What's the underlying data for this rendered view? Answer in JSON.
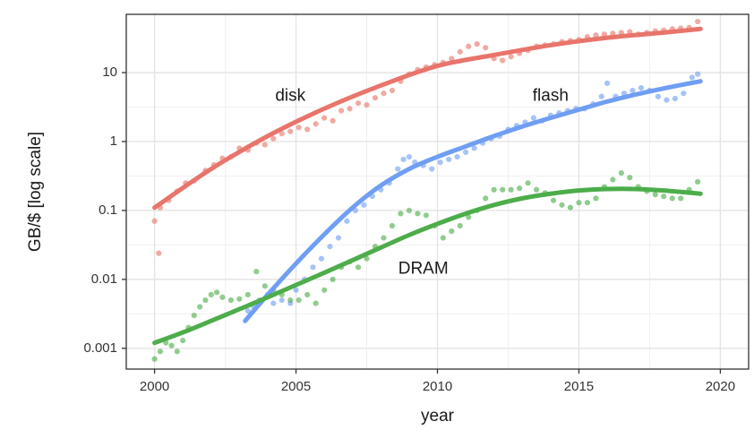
{
  "chart_data": {
    "type": "scatter",
    "title": "",
    "xlabel": "year",
    "ylabel": "GB/$ [log scale]",
    "xlim": [
      1999,
      2021
    ],
    "ylim": [
      0.0005,
      70
    ],
    "y_scale": "log",
    "grid": true,
    "legend": "none",
    "x_ticks": [
      2000,
      2005,
      2010,
      2015,
      2020
    ],
    "x_tick_labels": [
      "2000",
      "2005",
      "2010",
      "2015",
      "2020"
    ],
    "y_ticks": [
      0.001,
      0.01,
      0.1,
      1,
      10
    ],
    "y_tick_labels": [
      "0.001",
      "0.01",
      "0.1",
      "1",
      "10"
    ],
    "series": [
      {
        "label": "disk",
        "color": "#e8746b",
        "points": [
          [
            2000.0,
            0.07
          ],
          [
            2000.15,
            0.024
          ],
          [
            2000.2,
            0.11
          ],
          [
            2000.5,
            0.14
          ],
          [
            2000.8,
            0.19
          ],
          [
            2001.1,
            0.25
          ],
          [
            2001.4,
            0.27
          ],
          [
            2001.8,
            0.38
          ],
          [
            2002.1,
            0.46
          ],
          [
            2002.4,
            0.57
          ],
          [
            2002.7,
            0.6
          ],
          [
            2003.0,
            0.8
          ],
          [
            2003.3,
            0.75
          ],
          [
            2003.6,
            0.95
          ],
          [
            2003.9,
            0.9
          ],
          [
            2004.2,
            1.1
          ],
          [
            2004.5,
            1.3
          ],
          [
            2004.8,
            1.4
          ],
          [
            2005.1,
            1.6
          ],
          [
            2005.4,
            1.5
          ],
          [
            2005.7,
            1.8
          ],
          [
            2006.0,
            2.2
          ],
          [
            2006.3,
            2.0
          ],
          [
            2006.6,
            2.8
          ],
          [
            2006.9,
            3.0
          ],
          [
            2007.2,
            3.6
          ],
          [
            2007.5,
            3.4
          ],
          [
            2007.8,
            4.3
          ],
          [
            2008.1,
            5.0
          ],
          [
            2008.4,
            5.5
          ],
          [
            2008.7,
            7.5
          ],
          [
            2009.0,
            9.5
          ],
          [
            2009.3,
            11
          ],
          [
            2009.6,
            12
          ],
          [
            2009.9,
            13
          ],
          [
            2010.2,
            14
          ],
          [
            2010.5,
            16
          ],
          [
            2010.8,
            20
          ],
          [
            2011.1,
            24
          ],
          [
            2011.4,
            26
          ],
          [
            2011.7,
            23
          ],
          [
            2012.0,
            16
          ],
          [
            2012.3,
            15
          ],
          [
            2012.6,
            17
          ],
          [
            2012.9,
            19
          ],
          [
            2013.2,
            21
          ],
          [
            2013.5,
            24
          ],
          [
            2013.8,
            25
          ],
          [
            2014.1,
            26
          ],
          [
            2014.4,
            28
          ],
          [
            2014.7,
            29
          ],
          [
            2015.0,
            30
          ],
          [
            2015.3,
            33
          ],
          [
            2015.6,
            35
          ],
          [
            2015.9,
            36
          ],
          [
            2016.2,
            37
          ],
          [
            2016.5,
            38
          ],
          [
            2016.8,
            39
          ],
          [
            2017.1,
            36
          ],
          [
            2017.4,
            38
          ],
          [
            2017.7,
            40
          ],
          [
            2018.0,
            41
          ],
          [
            2018.3,
            43
          ],
          [
            2018.6,
            44
          ],
          [
            2018.9,
            45
          ],
          [
            2019.2,
            55
          ]
        ],
        "fit": [
          [
            2000,
            0.11
          ],
          [
            2002,
            0.4
          ],
          [
            2004,
            1.2
          ],
          [
            2006,
            3.0
          ],
          [
            2008,
            6.5
          ],
          [
            2010,
            12.5
          ],
          [
            2012,
            18
          ],
          [
            2014,
            25
          ],
          [
            2016,
            32
          ],
          [
            2018,
            38
          ],
          [
            2019.3,
            43
          ]
        ]
      },
      {
        "label": "flash",
        "color": "#6f9ef3",
        "points": [
          [
            2003.3,
            0.0035
          ],
          [
            2003.5,
            0.004
          ],
          [
            2003.7,
            0.005
          ],
          [
            2004.0,
            0.006
          ],
          [
            2004.2,
            0.0045
          ],
          [
            2004.5,
            0.005
          ],
          [
            2004.8,
            0.0045
          ],
          [
            2005.0,
            0.007
          ],
          [
            2005.3,
            0.01
          ],
          [
            2005.6,
            0.015
          ],
          [
            2005.9,
            0.02
          ],
          [
            2006.2,
            0.03
          ],
          [
            2006.5,
            0.04
          ],
          [
            2006.8,
            0.07
          ],
          [
            2007.1,
            0.1
          ],
          [
            2007.4,
            0.12
          ],
          [
            2007.7,
            0.16
          ],
          [
            2008.0,
            0.2
          ],
          [
            2008.3,
            0.25
          ],
          [
            2008.6,
            0.4
          ],
          [
            2008.8,
            0.55
          ],
          [
            2009.0,
            0.6
          ],
          [
            2009.2,
            0.5
          ],
          [
            2009.5,
            0.45
          ],
          [
            2009.8,
            0.4
          ],
          [
            2010.1,
            0.5
          ],
          [
            2010.4,
            0.55
          ],
          [
            2010.7,
            0.6
          ],
          [
            2011.0,
            0.7
          ],
          [
            2011.3,
            0.8
          ],
          [
            2011.6,
            0.95
          ],
          [
            2011.9,
            1.1
          ],
          [
            2012.2,
            1.2
          ],
          [
            2012.5,
            1.5
          ],
          [
            2012.8,
            1.7
          ],
          [
            2013.1,
            1.9
          ],
          [
            2013.4,
            2.2
          ],
          [
            2013.7,
            2.0
          ],
          [
            2014.0,
            2.4
          ],
          [
            2014.3,
            2.6
          ],
          [
            2014.6,
            2.8
          ],
          [
            2014.9,
            3.0
          ],
          [
            2015.2,
            3.0
          ],
          [
            2015.5,
            3.5
          ],
          [
            2015.8,
            4.5
          ],
          [
            2016.0,
            7.0
          ],
          [
            2016.3,
            4.5
          ],
          [
            2016.6,
            5.0
          ],
          [
            2016.9,
            5.5
          ],
          [
            2017.2,
            6.0
          ],
          [
            2017.5,
            5.5
          ],
          [
            2017.8,
            4.5
          ],
          [
            2018.1,
            4.0
          ],
          [
            2018.4,
            4.2
          ],
          [
            2018.7,
            5.0
          ],
          [
            2019.0,
            8.5
          ],
          [
            2019.2,
            9.5
          ]
        ],
        "fit": [
          [
            2003.2,
            0.0025
          ],
          [
            2004,
            0.006
          ],
          [
            2005,
            0.017
          ],
          [
            2006,
            0.045
          ],
          [
            2007,
            0.11
          ],
          [
            2008,
            0.23
          ],
          [
            2009,
            0.4
          ],
          [
            2010,
            0.6
          ],
          [
            2011,
            0.85
          ],
          [
            2012,
            1.2
          ],
          [
            2013,
            1.65
          ],
          [
            2014,
            2.2
          ],
          [
            2015,
            2.9
          ],
          [
            2016,
            3.8
          ],
          [
            2017,
            4.8
          ],
          [
            2018,
            5.9
          ],
          [
            2019.3,
            7.5
          ]
        ]
      },
      {
        "label": "DRAM",
        "color": "#4cad4a",
        "points": [
          [
            2000.0,
            0.0007
          ],
          [
            2000.2,
            0.0009
          ],
          [
            2000.4,
            0.0012
          ],
          [
            2000.6,
            0.0011
          ],
          [
            2000.8,
            0.0009
          ],
          [
            2001.0,
            0.0013
          ],
          [
            2001.2,
            0.002
          ],
          [
            2001.4,
            0.003
          ],
          [
            2001.6,
            0.004
          ],
          [
            2001.8,
            0.005
          ],
          [
            2002.0,
            0.006
          ],
          [
            2002.2,
            0.0065
          ],
          [
            2002.4,
            0.0055
          ],
          [
            2002.7,
            0.005
          ],
          [
            2003.0,
            0.0052
          ],
          [
            2003.3,
            0.006
          ],
          [
            2003.6,
            0.013
          ],
          [
            2003.9,
            0.008
          ],
          [
            2004.2,
            0.007
          ],
          [
            2004.5,
            0.006
          ],
          [
            2004.8,
            0.005
          ],
          [
            2005.1,
            0.005
          ],
          [
            2005.4,
            0.006
          ],
          [
            2005.7,
            0.0045
          ],
          [
            2006.0,
            0.007
          ],
          [
            2006.3,
            0.01
          ],
          [
            2006.6,
            0.015
          ],
          [
            2006.9,
            0.018
          ],
          [
            2007.2,
            0.015
          ],
          [
            2007.5,
            0.02
          ],
          [
            2007.8,
            0.03
          ],
          [
            2008.1,
            0.04
          ],
          [
            2008.4,
            0.06
          ],
          [
            2008.7,
            0.09
          ],
          [
            2009.0,
            0.1
          ],
          [
            2009.3,
            0.09
          ],
          [
            2009.6,
            0.085
          ],
          [
            2009.9,
            0.06
          ],
          [
            2010.2,
            0.04
          ],
          [
            2010.5,
            0.05
          ],
          [
            2010.8,
            0.06
          ],
          [
            2011.1,
            0.08
          ],
          [
            2011.4,
            0.1
          ],
          [
            2011.7,
            0.15
          ],
          [
            2012.0,
            0.2
          ],
          [
            2012.3,
            0.2
          ],
          [
            2012.6,
            0.2
          ],
          [
            2012.9,
            0.21
          ],
          [
            2013.2,
            0.25
          ],
          [
            2013.5,
            0.2
          ],
          [
            2013.8,
            0.18
          ],
          [
            2014.1,
            0.14
          ],
          [
            2014.4,
            0.12
          ],
          [
            2014.7,
            0.11
          ],
          [
            2015.0,
            0.13
          ],
          [
            2015.3,
            0.13
          ],
          [
            2015.6,
            0.15
          ],
          [
            2015.9,
            0.22
          ],
          [
            2016.2,
            0.28
          ],
          [
            2016.5,
            0.35
          ],
          [
            2016.8,
            0.3
          ],
          [
            2017.1,
            0.22
          ],
          [
            2017.4,
            0.19
          ],
          [
            2017.7,
            0.17
          ],
          [
            2018.0,
            0.16
          ],
          [
            2018.3,
            0.15
          ],
          [
            2018.6,
            0.15
          ],
          [
            2018.9,
            0.2
          ],
          [
            2019.2,
            0.26
          ]
        ],
        "fit": [
          [
            2000,
            0.0012
          ],
          [
            2001,
            0.0017
          ],
          [
            2002,
            0.0025
          ],
          [
            2003,
            0.0037
          ],
          [
            2004,
            0.0055
          ],
          [
            2005,
            0.0083
          ],
          [
            2006,
            0.0125
          ],
          [
            2007,
            0.019
          ],
          [
            2008,
            0.029
          ],
          [
            2009,
            0.044
          ],
          [
            2010,
            0.064
          ],
          [
            2011,
            0.09
          ],
          [
            2012,
            0.12
          ],
          [
            2013,
            0.15
          ],
          [
            2014,
            0.175
          ],
          [
            2015,
            0.195
          ],
          [
            2016,
            0.205
          ],
          [
            2017,
            0.205
          ],
          [
            2018,
            0.195
          ],
          [
            2019.3,
            0.175
          ]
        ]
      }
    ],
    "annotations": [
      {
        "text": "disk",
        "x": 2004.8,
        "y": 4.5
      },
      {
        "text": "flash",
        "x": 2014.0,
        "y": 4.5
      },
      {
        "text": "DRAM",
        "x": 2009.5,
        "y": 0.014
      }
    ]
  }
}
